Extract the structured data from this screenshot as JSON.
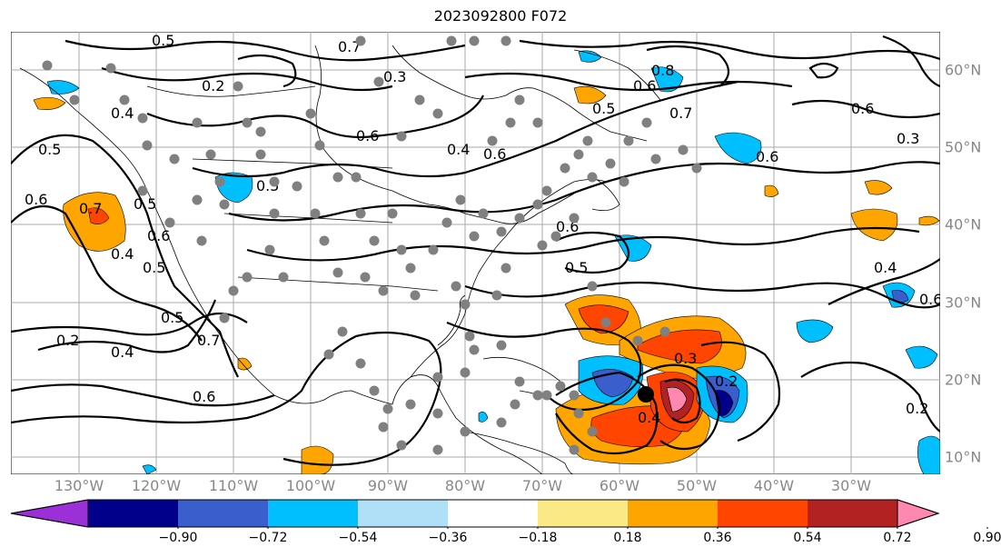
{
  "title": "2023092800 F072",
  "lon_labels": [
    "130°W",
    "120°W",
    "110°W",
    "100°W",
    "90°W",
    "80°W",
    "70°W",
    "60°W",
    "50°W",
    "40°W",
    "30°W"
  ],
  "lat_labels": [
    "60°N",
    "50°N",
    "40°N",
    "30°N",
    "20°N",
    "10°N"
  ],
  "colorbar": {
    "ticks": [
      "−0.90",
      "−0.72",
      "−0.54",
      "−0.36",
      "−0.18",
      "0.18",
      "0.36",
      "0.54",
      "0.72",
      "0.90"
    ],
    "colors": [
      "#9b30d9",
      "#00008b",
      "#3a5fcd",
      "#00bfff",
      "#afe0f7",
      "#ffffff",
      "#fbe985",
      "#ffa500",
      "#ff4500",
      "#b22222",
      "#ff88b0"
    ]
  },
  "contour_labels": [
    "0.5",
    "0.7",
    "0.2",
    "0.4",
    "0.5",
    "0.6",
    "0.7",
    "0.5",
    "0.8",
    "0.6",
    "0.4",
    "0.5",
    "0.6",
    "0.6",
    "0.3",
    "0.6",
    "0.7",
    "0.5",
    "0.6",
    "0.3",
    "0.6",
    "0.5",
    "0.4",
    "0.6",
    "0.5",
    "0.2",
    "0.4",
    "0.5",
    "0.7",
    "0.6",
    "0.4",
    "0.3",
    "0.2",
    "0.4",
    "0.6",
    "0.2"
  ]
}
